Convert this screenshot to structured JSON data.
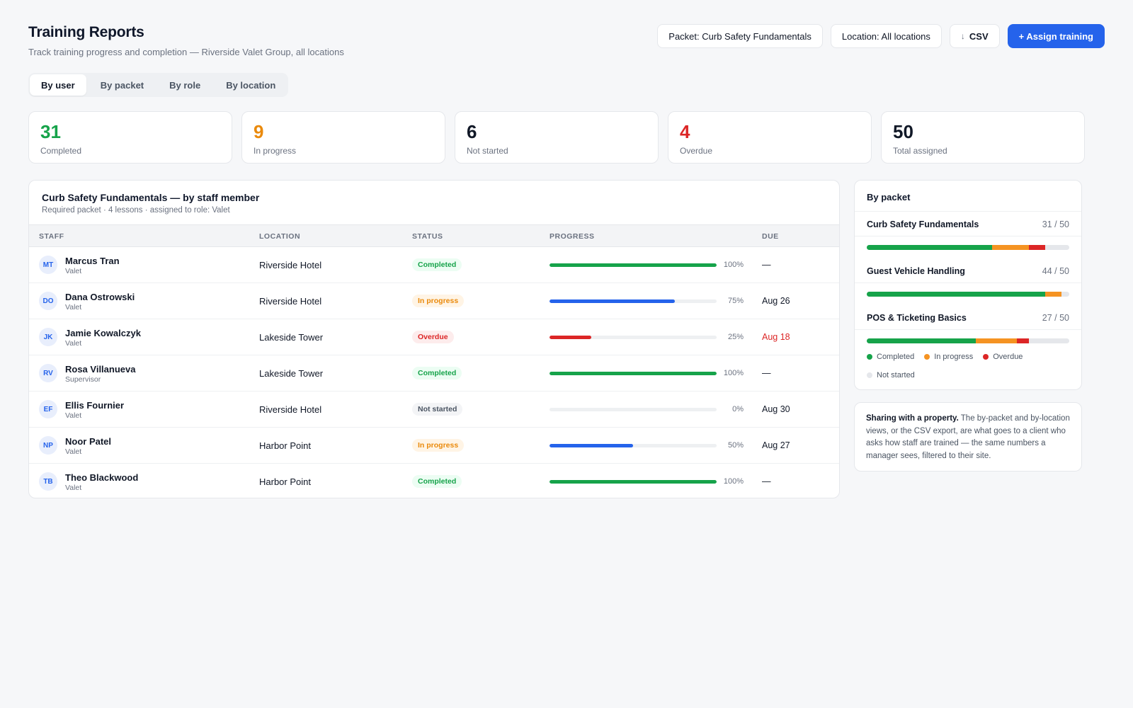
{
  "header": {
    "title": "Training Reports",
    "subtitle": "Track training progress and completion — Riverside Valet Group, all locations",
    "packet_filter": "Packet: Curb Safety Fundamentals",
    "location_filter": "Location: All locations",
    "csv_label": "CSV",
    "assign_label": "+ Assign training"
  },
  "tabs": [
    {
      "label": "By user",
      "active": true
    },
    {
      "label": "By packet",
      "active": false
    },
    {
      "label": "By role",
      "active": false
    },
    {
      "label": "By location",
      "active": false
    }
  ],
  "stats": [
    {
      "value": "31",
      "label": "Completed",
      "color": "#16a34a"
    },
    {
      "value": "9",
      "label": "In progress",
      "color": "#ea8a0c"
    },
    {
      "value": "6",
      "label": "Not started",
      "color": "#111827"
    },
    {
      "value": "4",
      "label": "Overdue",
      "color": "#dc2626"
    },
    {
      "value": "50",
      "label": "Total assigned",
      "color": "#111827"
    }
  ],
  "table": {
    "title": "Curb Safety Fundamentals — by staff member",
    "subtitle": "Required packet · 4 lessons · assigned to role: Valet",
    "columns": [
      "STAFF",
      "LOCATION",
      "STATUS",
      "PROGRESS",
      "DUE"
    ],
    "rows": [
      {
        "initials": "MT",
        "name": "Marcus Tran",
        "role": "Valet",
        "location": "Riverside Hotel",
        "status": "Completed",
        "status_key": "completed",
        "progress": 100,
        "progress_label": "100%",
        "due": "—",
        "due_overdue": false
      },
      {
        "initials": "DO",
        "name": "Dana Ostrowski",
        "role": "Valet",
        "location": "Riverside Hotel",
        "status": "In progress",
        "status_key": "inprogress",
        "progress": 75,
        "progress_label": "75%",
        "due": "Aug 26",
        "due_overdue": false
      },
      {
        "initials": "JK",
        "name": "Jamie Kowalczyk",
        "role": "Valet",
        "location": "Lakeside Tower",
        "status": "Overdue",
        "status_key": "overdue",
        "progress": 25,
        "progress_label": "25%",
        "due": "Aug 18",
        "due_overdue": true
      },
      {
        "initials": "RV",
        "name": "Rosa Villanueva",
        "role": "Supervisor",
        "location": "Lakeside Tower",
        "status": "Completed",
        "status_key": "completed",
        "progress": 100,
        "progress_label": "100%",
        "due": "—",
        "due_overdue": false
      },
      {
        "initials": "EF",
        "name": "Ellis Fournier",
        "role": "Valet",
        "location": "Riverside Hotel",
        "status": "Not started",
        "status_key": "notstarted",
        "progress": 0,
        "progress_label": "0%",
        "due": "Aug 30",
        "due_overdue": false
      },
      {
        "initials": "NP",
        "name": "Noor Patel",
        "role": "Valet",
        "location": "Harbor Point",
        "status": "In progress",
        "status_key": "inprogress",
        "progress": 50,
        "progress_label": "50%",
        "due": "Aug 27",
        "due_overdue": false
      },
      {
        "initials": "TB",
        "name": "Theo Blackwood",
        "role": "Valet",
        "location": "Harbor Point",
        "status": "Completed",
        "status_key": "completed",
        "progress": 100,
        "progress_label": "100%",
        "due": "—",
        "due_overdue": false
      }
    ]
  },
  "by_packet": {
    "title": "By packet",
    "packets": [
      {
        "name": "Curb Safety Fundamentals",
        "count": "31 / 50",
        "completed": 31,
        "in_progress": 9,
        "overdue": 4,
        "total": 50
      },
      {
        "name": "Guest Vehicle Handling",
        "count": "44 / 50",
        "completed": 44,
        "in_progress": 4,
        "overdue": 0,
        "total": 50
      },
      {
        "name": "POS & Ticketing Basics",
        "count": "27 / 50",
        "completed": 27,
        "in_progress": 10,
        "overdue": 3,
        "total": 50
      }
    ],
    "legend": [
      {
        "label": "Completed",
        "color": "#16a34a"
      },
      {
        "label": "In progress",
        "color": "#f59322"
      },
      {
        "label": "Overdue",
        "color": "#dc2626"
      },
      {
        "label": "Not started",
        "color": "#e5e7eb"
      }
    ]
  },
  "note": {
    "lead": "Sharing with a property.",
    "body": "The by-packet and by-location views, or the CSV export, are what goes to a client who asks how staff are trained — the same numbers a manager sees, filtered to their site."
  },
  "colors": {
    "accent": "#2563eb",
    "completed": "#16a34a",
    "in_progress_bar": "#2563eb",
    "overdue": "#dc2626"
  }
}
